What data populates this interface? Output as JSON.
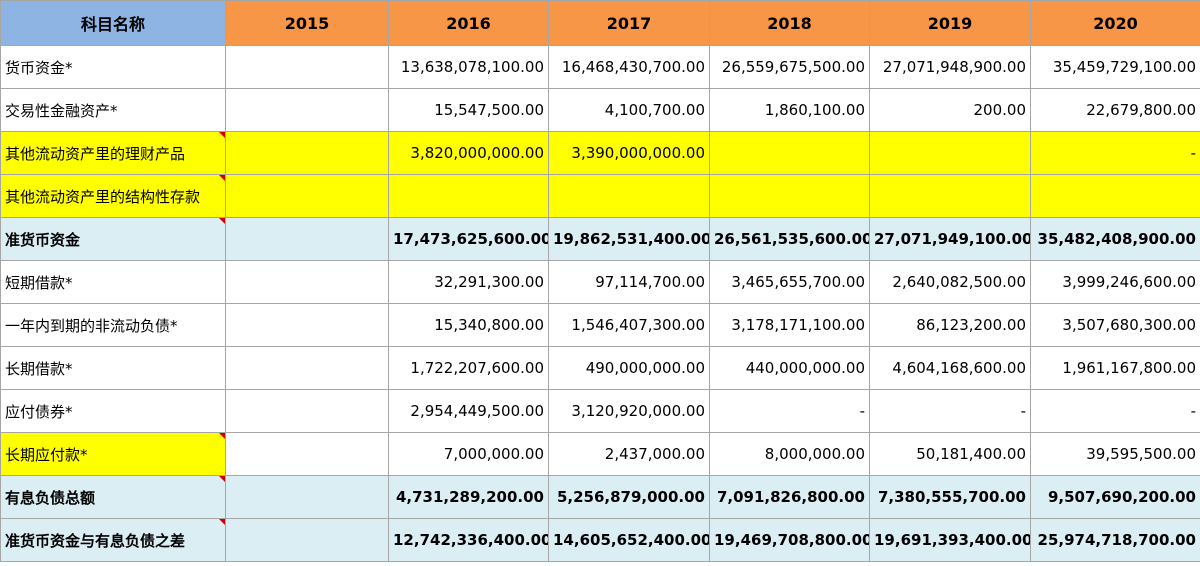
{
  "table": {
    "headers": [
      "科目名称",
      "2015",
      "2016",
      "2017",
      "2018",
      "2019",
      "2020"
    ],
    "rows": [
      {
        "label": "货币资金*",
        "values": [
          "",
          "13,638,078,100.00",
          "16,468,430,700.00",
          "26,559,675,500.00",
          "27,071,948,900.00",
          "35,459,729,100.00"
        ]
      },
      {
        "label": "交易性金融资产*",
        "values": [
          "",
          "15,547,500.00",
          "4,100,700.00",
          "1,860,100.00",
          "200.00",
          "22,679,800.00"
        ]
      },
      {
        "label": "其他流动资产里的理财产品",
        "values": [
          "",
          "3,820,000,000.00",
          "3,390,000,000.00",
          "",
          "",
          "-"
        ]
      },
      {
        "label": "其他流动资产里的结构性存款",
        "values": [
          "",
          "",
          "",
          "",
          "",
          ""
        ]
      },
      {
        "label": "准货币资金",
        "values": [
          "",
          "17,473,625,600.00",
          "19,862,531,400.00",
          "26,561,535,600.00",
          "27,071,949,100.00",
          "35,482,408,900.00"
        ]
      },
      {
        "label": "短期借款*",
        "values": [
          "",
          "32,291,300.00",
          "97,114,700.00",
          "3,465,655,700.00",
          "2,640,082,500.00",
          "3,999,246,600.00"
        ]
      },
      {
        "label": "一年内到期的非流动负债*",
        "values": [
          "",
          "15,340,800.00",
          "1,546,407,300.00",
          "3,178,171,100.00",
          "86,123,200.00",
          "3,507,680,300.00"
        ]
      },
      {
        "label": "长期借款*",
        "values": [
          "",
          "1,722,207,600.00",
          "490,000,000.00",
          "440,000,000.00",
          "4,604,168,600.00",
          "1,961,167,800.00"
        ]
      },
      {
        "label": "应付债券*",
        "values": [
          "",
          "2,954,449,500.00",
          "3,120,920,000.00",
          "-",
          "-",
          "-"
        ]
      },
      {
        "label": "长期应付款*",
        "values": [
          "",
          "7,000,000.00",
          "2,437,000.00",
          "8,000,000.00",
          "50,181,400.00",
          "39,595,500.00"
        ]
      },
      {
        "label": "有息负债总额",
        "values": [
          "",
          "4,731,289,200.00",
          "5,256,879,000.00",
          "7,091,826,800.00",
          "7,380,555,700.00",
          "9,507,690,200.00"
        ]
      },
      {
        "label": "准货币资金与有息负债之差",
        "values": [
          "",
          "12,742,336,400.00",
          "14,605,652,400.00",
          "19,469,708,800.00",
          "19,691,393,400.00",
          "25,974,718,700.00"
        ]
      }
    ]
  }
}
